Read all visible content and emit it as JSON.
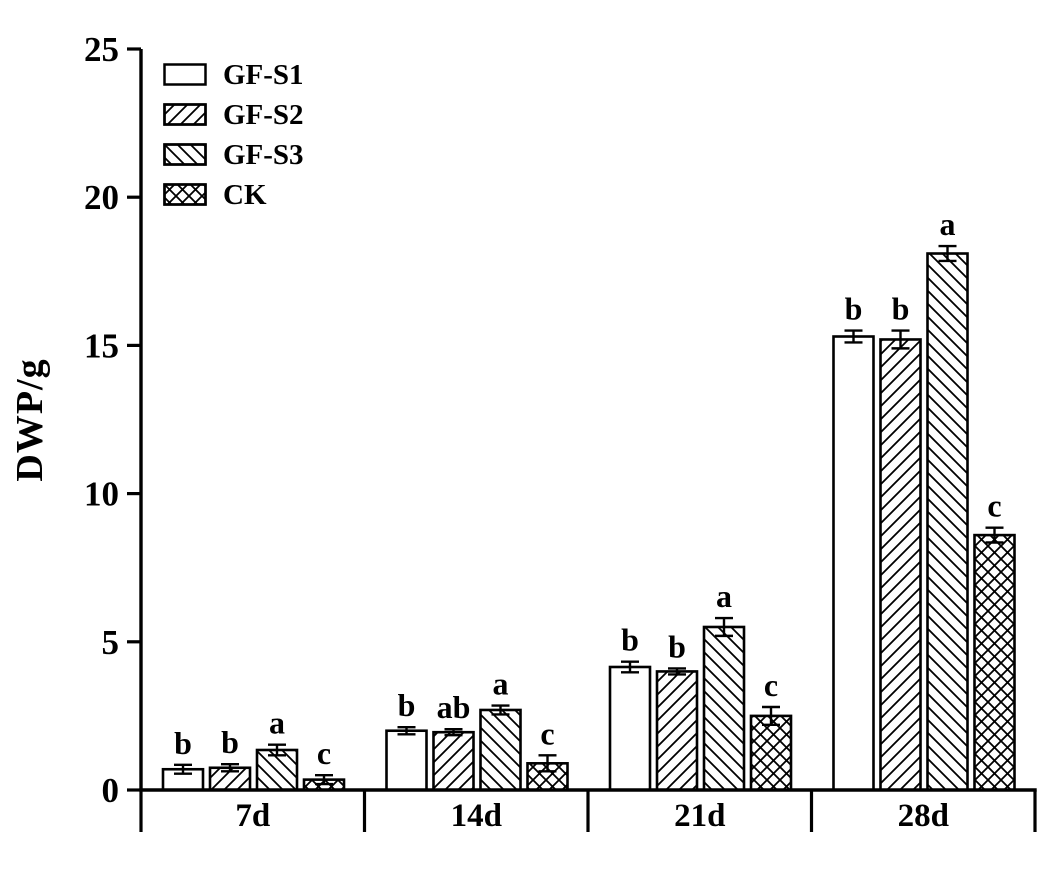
{
  "chart_data": {
    "type": "bar",
    "title": "",
    "xlabel": "",
    "ylabel": "DWP/g",
    "categories": [
      "7d",
      "14d",
      "21d",
      "28d"
    ],
    "ylim": [
      0,
      25
    ],
    "yticks": [
      0,
      5,
      10,
      15,
      20,
      25
    ],
    "grid": false,
    "legend_position": "top-left-inside",
    "bar_outline_color": "#000000",
    "background_color": "#ffffff",
    "series": [
      {
        "name": "GF-S1",
        "hatch": "none",
        "values": [
          0.7,
          2.0,
          4.15,
          15.3
        ],
        "errors": [
          0.15,
          0.12,
          0.18,
          0.2
        ],
        "letters": [
          "b",
          "b",
          "b",
          "b"
        ]
      },
      {
        "name": "GF-S2",
        "hatch": "forward-diagonal",
        "values": [
          0.75,
          1.95,
          4.0,
          15.2
        ],
        "errors": [
          0.12,
          0.1,
          0.1,
          0.3
        ],
        "letters": [
          "b",
          "ab",
          "b",
          "b"
        ]
      },
      {
        "name": "GF-S3",
        "hatch": "back-diagonal",
        "values": [
          1.35,
          2.7,
          5.5,
          18.1
        ],
        "errors": [
          0.18,
          0.15,
          0.3,
          0.25
        ],
        "letters": [
          "a",
          "a",
          "a",
          "a"
        ]
      },
      {
        "name": "CK",
        "hatch": "cross",
        "values": [
          0.35,
          0.9,
          2.5,
          8.6
        ],
        "errors": [
          0.15,
          0.27,
          0.3,
          0.25
        ],
        "letters": [
          "c",
          "c",
          "c",
          "c"
        ]
      }
    ]
  }
}
